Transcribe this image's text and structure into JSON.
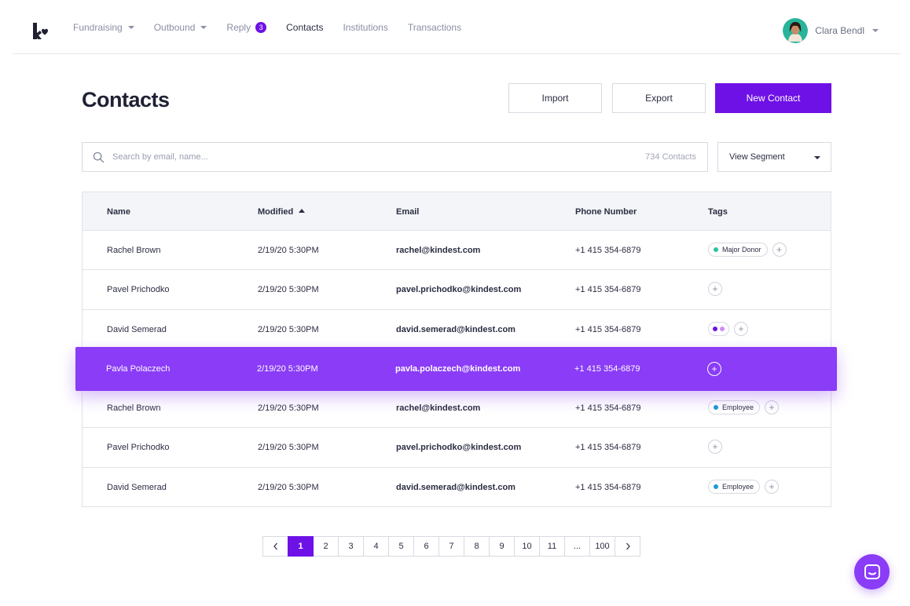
{
  "nav": {
    "items": [
      {
        "label": "Fundraising",
        "dropdown": true,
        "active": false
      },
      {
        "label": "Outbound",
        "dropdown": true,
        "active": false
      },
      {
        "label": "Reply",
        "badge": "3",
        "active": false
      },
      {
        "label": "Contacts",
        "active": true
      },
      {
        "label": "Institutions",
        "active": false
      },
      {
        "label": "Transactions",
        "active": false
      }
    ],
    "user_name": "Clara Bendl"
  },
  "page": {
    "title": "Contacts",
    "import_label": "Import",
    "export_label": "Export",
    "new_contact_label": "New Contact"
  },
  "search": {
    "placeholder": "Search by email, name...",
    "count": "734 Contacts",
    "segment_label": "View Segment"
  },
  "table": {
    "headers": {
      "name": "Name",
      "modified": "Modified",
      "email": "Email",
      "phone": "Phone Number",
      "tags": "Tags"
    },
    "rows": [
      {
        "name": "Rachel Brown",
        "modified": "2/19/20 5:30PM",
        "email": "rachel@kindest.com",
        "phone": "+1 415 354-6879",
        "tag": "Major Donor",
        "tag_color": "#2bc4a0"
      },
      {
        "name": "Pavel Prichodko",
        "modified": "2/19/20 5:30PM",
        "email": "pavel.prichodko@kindest.com",
        "phone": "+1 415 354-6879"
      },
      {
        "name": "David Semerad",
        "modified": "2/19/20 5:30PM",
        "email": "david.semerad@kindest.com",
        "phone": "+1 415 354-6879",
        "tag_dots": [
          "#6e11e6",
          "#d08cf7"
        ]
      },
      {
        "name": "Pavla Polaczech",
        "modified": "2/19/20 5:30PM",
        "email": "pavla.polaczech@kindest.com",
        "phone": "+1 415 354-6879",
        "highlighted": true
      },
      {
        "name": "Rachel Brown",
        "modified": "2/19/20 5:30PM",
        "email": "rachel@kindest.com",
        "phone": "+1 415 354-6879",
        "tag": "Employee",
        "tag_color": "#1a9ad6"
      },
      {
        "name": "Pavel Prichodko",
        "modified": "2/19/20 5:30PM",
        "email": "pavel.prichodko@kindest.com",
        "phone": "+1 415 354-6879"
      },
      {
        "name": "David Semerad",
        "modified": "2/19/20 5:30PM",
        "email": "david.semerad@kindest.com",
        "phone": "+1 415 354-6879",
        "tag": "Employee",
        "tag_color": "#1a9ad6"
      }
    ]
  },
  "pagination": {
    "pages": [
      "1",
      "2",
      "3",
      "4",
      "5",
      "6",
      "7",
      "8",
      "9",
      "10",
      "11",
      "...",
      "100"
    ],
    "current": "1"
  },
  "colors": {
    "accent": "#6e11e6",
    "highlight_row": "#8a3cf7"
  },
  "icons": {
    "logo": "kindest-logo",
    "search": "search-icon",
    "chat": "chat-icon",
    "prev": "chevron-left-icon",
    "next": "chevron-right-icon"
  }
}
